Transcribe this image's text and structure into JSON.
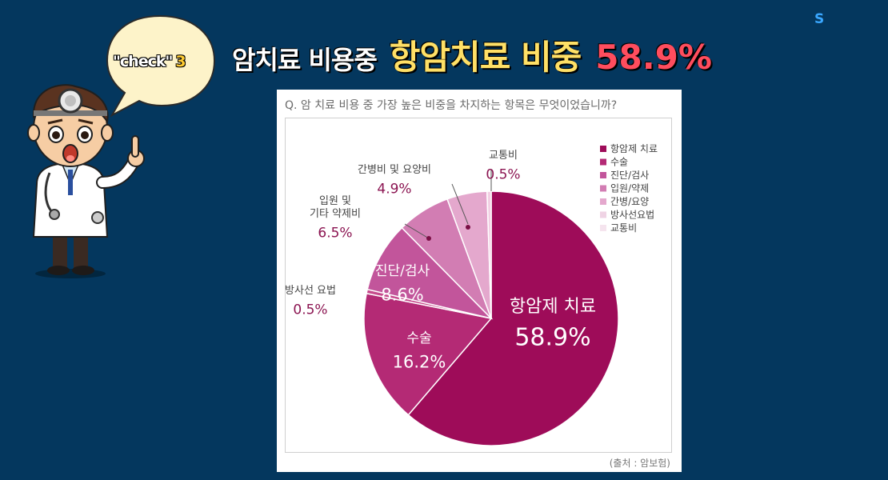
{
  "brand": "S",
  "headline": {
    "part1": "암치료 비용중",
    "part2": "항암치료 비중",
    "part3": "58.9%"
  },
  "bubble": {
    "label": "\"check\"",
    "number": "3"
  },
  "question": "Q. 암 치료 비용 중 가장 높은 비중을 차지하는 항목은 무엇이었습니까?",
  "source": "(출처 : 암보험)",
  "colors": {
    "background": "#04375e",
    "accent_yellow": "#ffe066",
    "accent_red": "#ff4d5e",
    "label_text": "#8b1451"
  },
  "chart_data": {
    "type": "pie",
    "title": "",
    "slices": [
      {
        "name": "항암제 치료",
        "value": 58.9,
        "color": "#9e0c59",
        "label_lines": [
          "항암제 치료"
        ],
        "value_text": "58.9%"
      },
      {
        "name": "수술",
        "value": 16.2,
        "color": "#b42a75",
        "label_lines": [
          "수술"
        ],
        "value_text": "16.2%"
      },
      {
        "name": "방사선요법",
        "value": 0.5,
        "color": "#c64a8c",
        "label_lines": [
          "방사선 요법"
        ],
        "value_text": "0.5%"
      },
      {
        "name": "진단/검사",
        "value": 8.6,
        "color": "#c2559b",
        "label_lines": [
          "진단/검사"
        ],
        "value_text": "8.6%"
      },
      {
        "name": "입원/약제",
        "value": 6.5,
        "color": "#d27db3",
        "label_lines": [
          "입원 및",
          "기타 약제비"
        ],
        "value_text": "6.5%"
      },
      {
        "name": "간병/요양",
        "value": 4.9,
        "color": "#e4a8cd",
        "label_lines": [
          "간병비 및 요양비"
        ],
        "value_text": "4.9%"
      },
      {
        "name": "교통비",
        "value": 0.5,
        "color": "#f2cfe3",
        "label_lines": [
          "교통비"
        ],
        "value_text": "0.5%"
      }
    ],
    "legend": {
      "placement": "top-right",
      "entries": [
        {
          "label": "항암제 치료",
          "color": "#9e0c59"
        },
        {
          "label": "수술",
          "color": "#b42a75"
        },
        {
          "label": "진단/검사",
          "color": "#c2559b"
        },
        {
          "label": "입원/약제",
          "color": "#d27db3"
        },
        {
          "label": "간병/요양",
          "color": "#e4a8cd"
        },
        {
          "label": "방사선요법",
          "color": "#efd3e4"
        },
        {
          "label": "교통비",
          "color": "#f5e4ee"
        }
      ]
    }
  }
}
